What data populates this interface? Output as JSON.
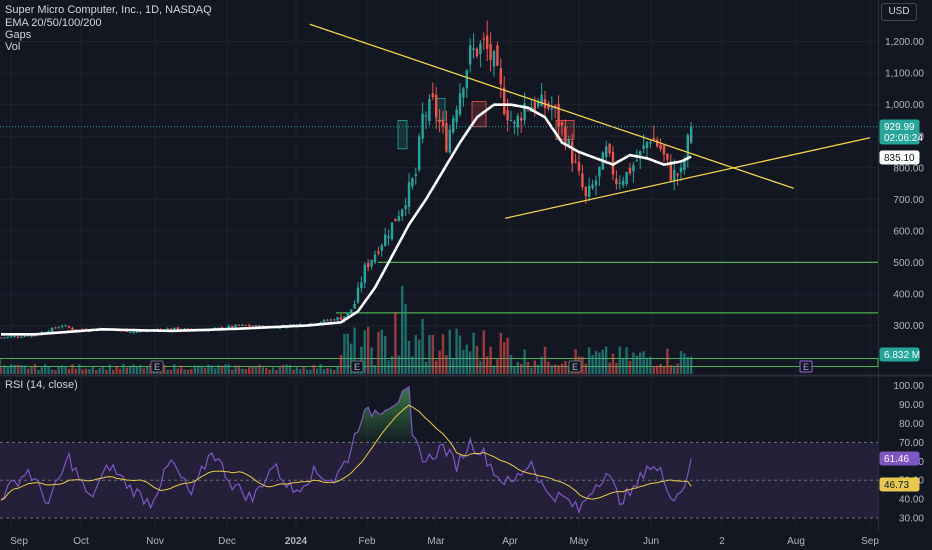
{
  "header": {
    "title": "Super Micro Computer, Inc., 1D, NASDAQ",
    "ema_label": "EMA 20/50/100/200",
    "gaps_label": "Gaps",
    "vol_label": "Vol",
    "currency": "USD"
  },
  "rsi_panel": {
    "label": "RSI (14, close)"
  },
  "price_badges": {
    "last_price": "929.99",
    "countdown": "02:06:24",
    "ema_value": "835.10",
    "volume": "6.832 M",
    "rsi_value": "61.46",
    "rsi_ma_value": "46.73"
  },
  "earnings_marker": "E",
  "colors": {
    "background": "#131722",
    "up": "#26a69a",
    "down": "#ef5350",
    "ema": "#ffffff",
    "trendline": "#f0d34a",
    "support_line": "#4caf50",
    "rsi_line": "#7e57c2",
    "rsi_ma": "#e6c84a",
    "rsi_band": "#2a2440"
  },
  "chart_data": [
    {
      "type": "candlestick",
      "title": "Super Micro Computer, Inc., 1D, NASDAQ",
      "x_ticks": [
        "Sep",
        "Oct",
        "Nov",
        "Dec",
        "2024",
        "Feb",
        "Mar",
        "Apr",
        "May",
        "Jun",
        "2",
        "Aug",
        "Sep"
      ],
      "y_ticks": [
        300,
        400,
        500,
        600,
        700,
        800,
        900,
        1000,
        1100,
        1200
      ],
      "y_tick_labels": [
        "300.00",
        "400.00",
        "500.00",
        "600.00",
        "700.00",
        "800.00",
        "900.00",
        "1,000.00",
        "1,100.00",
        "1,200.00"
      ],
      "ylim": [
        165,
        1260
      ],
      "horizontal_levels": [
        500,
        340
      ],
      "trendlines": [
        {
          "label": "descending",
          "from": [
            "2024-01-07",
            1255
          ],
          "to": [
            "2024-07-31",
            735
          ]
        },
        {
          "label": "ascending",
          "from": [
            "2024-03-30",
            640
          ],
          "to": [
            "2024-09-30",
            895
          ]
        }
      ],
      "series": [
        {
          "name": "EMA",
          "values_sampled": [
            [
              0,
              272
            ],
            [
              10,
              272
            ],
            [
              20,
              280
            ],
            [
              30,
              288
            ],
            [
              40,
              285
            ],
            [
              50,
              283
            ],
            [
              60,
              286
            ],
            [
              70,
              290
            ],
            [
              80,
              295
            ],
            [
              90,
              300
            ],
            [
              100,
              310
            ],
            [
              105,
              345
            ],
            [
              110,
              420
            ],
            [
              115,
              520
            ],
            [
              120,
              620
            ],
            [
              125,
              700
            ],
            [
              130,
              790
            ],
            [
              135,
              880
            ],
            [
              140,
              960
            ],
            [
              145,
              1000
            ],
            [
              150,
              1000
            ],
            [
              155,
              990
            ],
            [
              160,
              960
            ],
            [
              165,
              880
            ],
            [
              170,
              850
            ],
            [
              175,
              830
            ],
            [
              180,
              810
            ],
            [
              185,
              840
            ],
            [
              190,
              830
            ],
            [
              195,
              810
            ],
            [
              200,
              820
            ],
            [
              203,
              835
            ]
          ]
        }
      ],
      "last_price": 929.99,
      "ema_last": 835.1
    },
    {
      "type": "bar",
      "title": "Vol",
      "last_value": "6.832 M"
    },
    {
      "type": "line",
      "title": "RSI (14, close)",
      "y_ticks": [
        30,
        40,
        50,
        60,
        70,
        80,
        90,
        100
      ],
      "y_tick_labels": [
        "30.00",
        "40.00",
        "50.00",
        "60.00",
        "70.00",
        "80.00",
        "90.00",
        "100.00"
      ],
      "ylim": [
        27,
        102
      ],
      "bands": [
        70,
        50,
        30
      ],
      "series": [
        {
          "name": "RSI",
          "last": 61.46
        },
        {
          "name": "RSI MA",
          "last": 46.73
        }
      ]
    }
  ]
}
